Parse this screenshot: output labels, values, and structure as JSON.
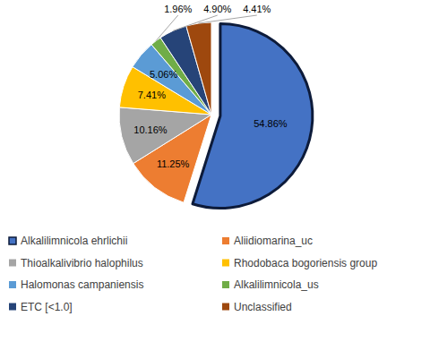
{
  "chart_data": {
    "type": "pie",
    "categories": [
      "Alkalilimnicola ehrlichii",
      "Aliidiomarina_uc",
      "Thioalkalivibrio halophilus",
      "Rhodobaca bogoriensis group",
      "Halomonas campaniensis",
      "Alkalilimnicola_us",
      "ETC [<1.0]",
      "Unclassified"
    ],
    "values": [
      54.86,
      11.25,
      10.16,
      7.41,
      5.06,
      1.96,
      4.9,
      4.41
    ],
    "value_labels": [
      "54.86%",
      "11.25%",
      "10.16%",
      "7.41%",
      "5.06%",
      "1.96%",
      "4.90%",
      "4.41%"
    ],
    "colors": [
      "#4472c4",
      "#ed7d31",
      "#a5a5a5",
      "#ffc000",
      "#5b9bd5",
      "#70ad47",
      "#264478",
      "#9e480e"
    ],
    "data_labels": true,
    "legend": "bottom"
  }
}
